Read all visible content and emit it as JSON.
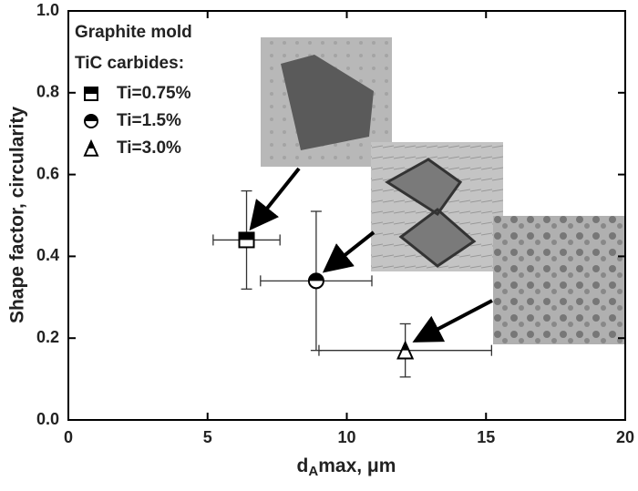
{
  "chart_data": {
    "type": "scatter",
    "x_label": [
      "d",
      "A",
      "max, μm"
    ],
    "y_label": "Shape factor, circularity",
    "legend_title": [
      "Graphite mold",
      "TiC carbides:"
    ],
    "xlim": [
      0,
      20
    ],
    "xticks": [
      0,
      5,
      10,
      15,
      20
    ],
    "ylim": [
      0,
      1
    ],
    "yticks": [
      {
        "value": 0,
        "label": "0.0"
      },
      0.2,
      0.4,
      0.6,
      0.8,
      {
        "value": 1,
        "label": "1.0"
      }
    ],
    "series": [
      {
        "name": "Ti=0.75%",
        "marker": "square",
        "color": "#000000",
        "x": [
          6.4
        ],
        "values": [
          0.44
        ],
        "xerr": [
          1.2
        ],
        "yerr": [
          0.12
        ]
      },
      {
        "name": "Ti=1.5%",
        "marker": "circle",
        "color": "#000000",
        "x": [
          8.9
        ],
        "values": [
          0.34
        ],
        "xerr": [
          2.0
        ],
        "yerr": [
          0.17
        ]
      },
      {
        "name": "Ti=3.0%",
        "marker": "triangle",
        "color": "#000000",
        "x": [
          12.1
        ],
        "values": [
          0.17
        ],
        "xerr": [
          3.1
        ],
        "yerr": [
          0.065
        ]
      }
    ]
  }
}
